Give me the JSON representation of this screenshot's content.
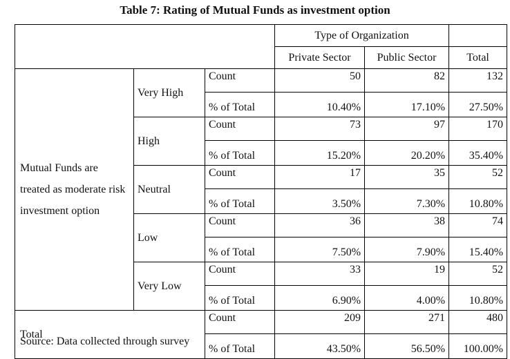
{
  "title": "Table 7: Rating of Mutual Funds as investment option",
  "header": {
    "group": "Type of Organization",
    "col_private": "Private Sector",
    "col_public": "Public Sector",
    "col_total": "Total"
  },
  "row_label": "Mutual Funds are treated as moderate risk investment option",
  "groups": [
    {
      "label": "Very High",
      "count": [
        "Count",
        "50",
        "82",
        "132"
      ],
      "pct": [
        "% of Total",
        "10.40%",
        "17.10%",
        "27.50%"
      ]
    },
    {
      "label": "High",
      "count": [
        "Count",
        "73",
        "97",
        "170"
      ],
      "pct": [
        "% of Total",
        "15.20%",
        "20.20%",
        "35.40%"
      ]
    },
    {
      "label": "Neutral",
      "count": [
        "Count",
        "17",
        "35",
        "52"
      ],
      "pct": [
        "% of Total",
        "3.50%",
        "7.30%",
        "10.80%"
      ]
    },
    {
      "label": "Low",
      "count": [
        "Count",
        "36",
        "38",
        "74"
      ],
      "pct": [
        "% of Total",
        "7.50%",
        "7.90%",
        "15.40%"
      ]
    },
    {
      "label": "Very Low",
      "count": [
        "Count",
        "33",
        "19",
        "52"
      ],
      "pct": [
        "% of Total",
        "6.90%",
        "4.00%",
        "10.80%"
      ]
    }
  ],
  "total": {
    "label": "Total",
    "count": [
      "Count",
      "209",
      "271",
      "480"
    ],
    "pct": [
      "% of Total",
      "43.50%",
      "56.50%",
      "100.00%"
    ]
  },
  "source": "Source: Data collected through survey"
}
